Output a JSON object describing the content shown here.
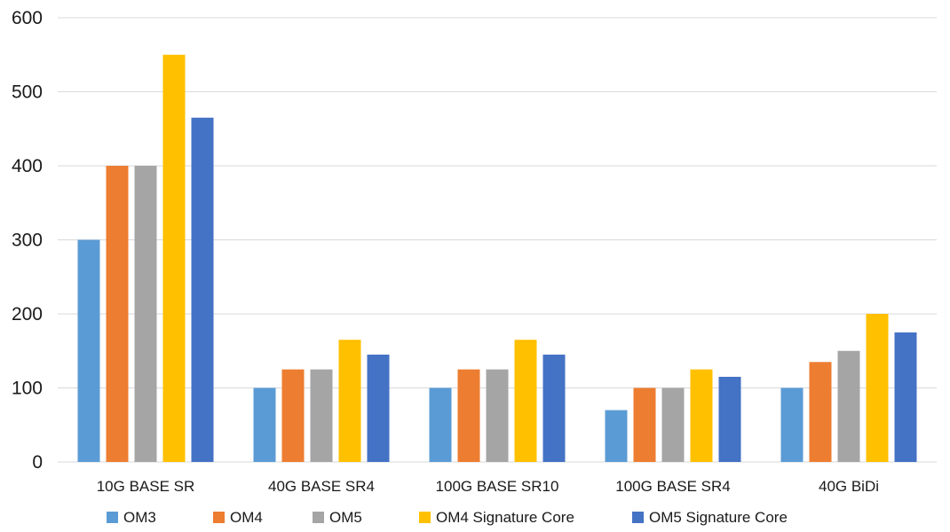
{
  "chart_data": {
    "type": "bar",
    "title": "",
    "xlabel": "",
    "ylabel": "",
    "ylim": [
      0,
      600
    ],
    "yticks": [
      0,
      100,
      200,
      300,
      400,
      500,
      600
    ],
    "grid": true,
    "legend_position": "bottom",
    "categories": [
      "10G BASE SR",
      "40G BASE SR4",
      "100G BASE SR10",
      "100G BASE SR4",
      "40G BiDi"
    ],
    "series": [
      {
        "name": "OM3",
        "color": "#5b9bd5",
        "values": [
          300,
          100,
          100,
          70,
          100
        ]
      },
      {
        "name": "OM4",
        "color": "#ed7d31",
        "values": [
          400,
          125,
          125,
          100,
          135
        ]
      },
      {
        "name": "OM5",
        "color": "#a5a5a5",
        "values": [
          400,
          125,
          125,
          100,
          150
        ]
      },
      {
        "name": "OM4 Signature Core",
        "color": "#ffc000",
        "values": [
          550,
          165,
          165,
          125,
          200
        ]
      },
      {
        "name": "OM5 Signature Core",
        "color": "#4472c4",
        "values": [
          465,
          145,
          145,
          115,
          175
        ]
      }
    ]
  }
}
